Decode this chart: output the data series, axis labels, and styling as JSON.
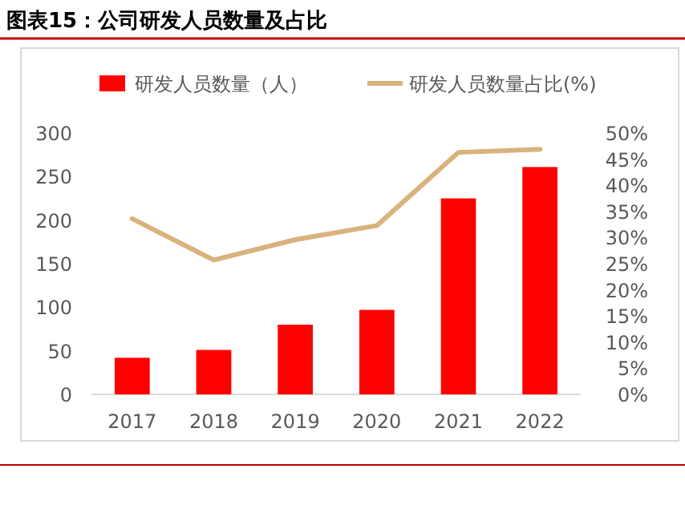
{
  "chart_data": {
    "type": "bar",
    "title": "图表15：公司研发人员数量及占比",
    "categories": [
      "2017",
      "2018",
      "2019",
      "2020",
      "2021",
      "2022"
    ],
    "series": [
      {
        "name": "研发人员数量（人）",
        "color": "#ff0000",
        "values": [
          42,
          51,
          80,
          97,
          225,
          261
        ]
      },
      {
        "name": "研发人员数量占比(%)",
        "type": "line",
        "axis": "y2",
        "color": "#d9b27c",
        "values": [
          33.6,
          25.7,
          29.6,
          32.3,
          46.3,
          46.9
        ]
      }
    ],
    "ylim": [
      0,
      300
    ],
    "yticks": [
      0,
      50,
      100,
      150,
      200,
      250,
      300
    ],
    "y2lim": [
      0,
      50
    ],
    "y2ticks": [
      {
        "value": 0,
        "label": "0%"
      },
      {
        "value": 5,
        "label": "5%"
      },
      {
        "value": 10,
        "label": "10%"
      },
      {
        "value": 15,
        "label": "15%"
      },
      {
        "value": 20,
        "label": "20%"
      },
      {
        "value": 25,
        "label": "25%"
      },
      {
        "value": 30,
        "label": "30%"
      },
      {
        "value": 35,
        "label": "35%"
      },
      {
        "value": 40,
        "label": "40%"
      },
      {
        "value": 45,
        "label": "45%"
      },
      {
        "value": 50,
        "label": "50%"
      }
    ],
    "legend": "top",
    "grid": false
  }
}
